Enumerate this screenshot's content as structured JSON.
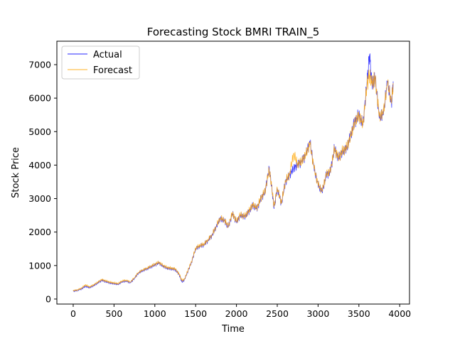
{
  "chart_data": {
    "type": "line",
    "title": "Forecasting Stock BMRI TRAIN_5",
    "xlabel": "Time",
    "ylabel": "Stock Price",
    "xlim": [
      -200,
      4120
    ],
    "ylim": [
      -150,
      7700
    ],
    "xticks": [
      0,
      500,
      1000,
      1500,
      2000,
      2500,
      3000,
      3500,
      4000
    ],
    "yticks": [
      0,
      1000,
      2000,
      3000,
      4000,
      5000,
      6000,
      7000
    ],
    "grid": false,
    "legend": "top-left",
    "series": [
      {
        "name": "Actual",
        "color": "#0000ff",
        "x": [
          0,
          50,
          100,
          150,
          200,
          250,
          300,
          350,
          400,
          450,
          500,
          550,
          600,
          650,
          700,
          750,
          800,
          850,
          900,
          950,
          1000,
          1050,
          1100,
          1150,
          1200,
          1250,
          1300,
          1330,
          1360,
          1400,
          1450,
          1500,
          1550,
          1600,
          1650,
          1700,
          1750,
          1800,
          1850,
          1900,
          1950,
          2000,
          2050,
          2100,
          2150,
          2200,
          2250,
          2300,
          2350,
          2400,
          2430,
          2460,
          2500,
          2550,
          2600,
          2650,
          2700,
          2750,
          2800,
          2850,
          2900,
          2950,
          3000,
          3050,
          3100,
          3150,
          3200,
          3250,
          3300,
          3350,
          3400,
          3450,
          3500,
          3550,
          3600,
          3630,
          3660,
          3700,
          3750,
          3800,
          3850,
          3900,
          3920
        ],
        "values": [
          230,
          260,
          300,
          380,
          340,
          400,
          480,
          560,
          520,
          480,
          460,
          440,
          520,
          540,
          490,
          620,
          780,
          850,
          900,
          960,
          1020,
          1080,
          980,
          920,
          900,
          880,
          720,
          520,
          560,
          800,
          1100,
          1500,
          1580,
          1620,
          1750,
          1900,
          2150,
          2400,
          2350,
          2150,
          2550,
          2300,
          2500,
          2450,
          2600,
          2800,
          2700,
          3000,
          3200,
          3900,
          3400,
          2700,
          3300,
          2850,
          3500,
          3700,
          3900,
          4000,
          4100,
          4300,
          4700,
          3900,
          3400,
          3200,
          3700,
          3800,
          4500,
          4200,
          4400,
          4500,
          4900,
          5300,
          5500,
          5200,
          6500,
          7300,
          6400,
          6600,
          5400,
          5500,
          6500,
          5800,
          6500
        ]
      },
      {
        "name": "Forecast",
        "color": "#ffa500",
        "x": [
          0,
          50,
          100,
          150,
          200,
          250,
          300,
          350,
          400,
          450,
          500,
          550,
          600,
          650,
          700,
          750,
          800,
          850,
          900,
          950,
          1000,
          1050,
          1100,
          1150,
          1200,
          1250,
          1300,
          1330,
          1360,
          1400,
          1450,
          1500,
          1550,
          1600,
          1650,
          1700,
          1750,
          1800,
          1850,
          1900,
          1950,
          2000,
          2050,
          2100,
          2150,
          2200,
          2250,
          2300,
          2350,
          2400,
          2430,
          2460,
          2500,
          2550,
          2600,
          2650,
          2700,
          2750,
          2800,
          2850,
          2900,
          2950,
          3000,
          3050,
          3100,
          3150,
          3200,
          3250,
          3300,
          3350,
          3400,
          3450,
          3500,
          3550,
          3600,
          3630,
          3660,
          3700,
          3750,
          3800,
          3850,
          3900,
          3920
        ],
        "values": [
          250,
          270,
          320,
          420,
          360,
          420,
          500,
          580,
          540,
          500,
          480,
          460,
          540,
          560,
          510,
          640,
          800,
          870,
          920,
          980,
          1040,
          1100,
          1000,
          940,
          920,
          900,
          740,
          560,
          580,
          820,
          1120,
          1520,
          1600,
          1640,
          1770,
          1920,
          2170,
          2420,
          2370,
          2170,
          2570,
          2320,
          2520,
          2470,
          2620,
          2820,
          2720,
          3020,
          3220,
          3850,
          3420,
          2750,
          3320,
          2870,
          3520,
          3720,
          4350,
          4020,
          4120,
          4320,
          4650,
          3920,
          3420,
          3220,
          3720,
          3820,
          4480,
          4220,
          4420,
          4520,
          4880,
          5280,
          5480,
          5220,
          6400,
          6700,
          6420,
          6600,
          5450,
          5550,
          6450,
          5850,
          6450
        ]
      }
    ]
  }
}
